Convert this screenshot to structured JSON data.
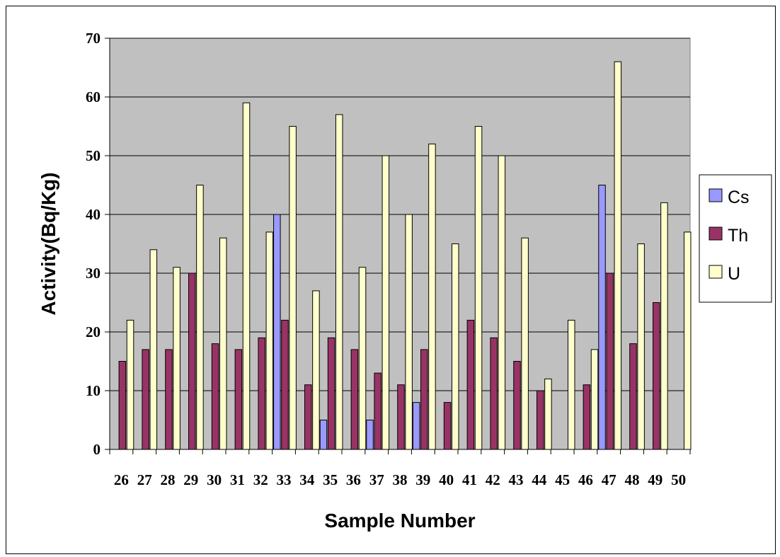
{
  "chart_data": {
    "type": "bar",
    "xlabel": "Sample Number",
    "ylabel": "Activity(Bq/Kg)",
    "ylim": [
      0,
      70
    ],
    "yticks": [
      0,
      10,
      20,
      30,
      40,
      50,
      60,
      70
    ],
    "grid": true,
    "legend_position": "right",
    "categories": [
      "26",
      "27",
      "28",
      "29",
      "30",
      "31",
      "32",
      "33",
      "34",
      "35",
      "36",
      "37",
      "38",
      "39",
      "40",
      "41",
      "42",
      "43",
      "44",
      "45",
      "46",
      "47",
      "48",
      "49",
      "50"
    ],
    "series": [
      {
        "name": "Cs",
        "color": "#9999ff",
        "values": [
          0,
          0,
          0,
          0,
          0,
          0,
          0,
          40,
          0,
          5,
          0,
          5,
          0,
          8,
          0,
          0,
          0,
          0,
          0,
          0,
          0,
          45,
          0,
          0,
          0
        ]
      },
      {
        "name": "Th",
        "color": "#993366",
        "values": [
          15,
          17,
          17,
          30,
          18,
          17,
          19,
          22,
          11,
          19,
          17,
          13,
          11,
          17,
          8,
          22,
          19,
          15,
          10,
          0,
          11,
          30,
          18,
          25,
          0
        ]
      },
      {
        "name": "U",
        "color": "#ffffcc",
        "values": [
          22,
          34,
          31,
          45,
          36,
          59,
          37,
          55,
          27,
          57,
          31,
          50,
          40,
          52,
          35,
          55,
          50,
          36,
          12,
          22,
          17,
          66,
          35,
          42,
          37
        ]
      }
    ]
  }
}
